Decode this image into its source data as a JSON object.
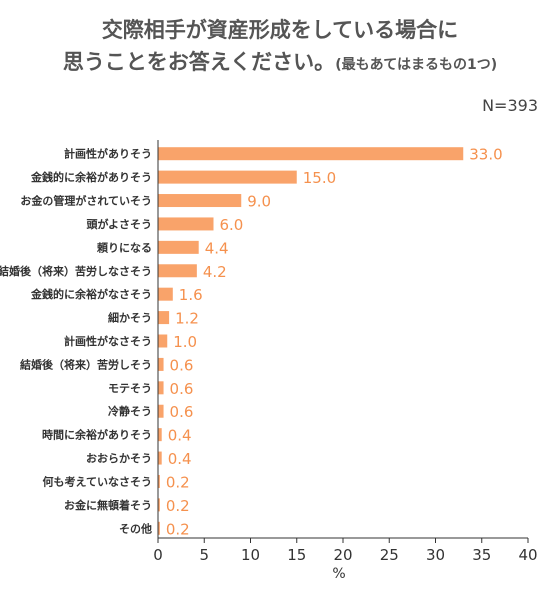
{
  "header": {
    "title_line1": "交際相手が資産形成をしている場合に",
    "title_line2": "思うことをお答えください。",
    "title_note": "(最もあてはまるもの1つ)",
    "sample_size": "N=393"
  },
  "colors": {
    "bar": "#F9A36A",
    "value_label": "#F5914E",
    "axis": "#333333"
  },
  "chart_data": {
    "type": "bar",
    "orientation": "horizontal",
    "title": "交際相手が資産形成をしている場合に思うことをお答えください。(最もあてはまるもの1つ)",
    "categories": [
      "計画性がありそう",
      "金銭的に余裕がありそう",
      "お金の管理がされていそう",
      "頭がよさそう",
      "頼りになる",
      "結婚後（将来）苦労しなさそう",
      "金銭的に余裕がなさそう",
      "細かそう",
      "計画性がなさそう",
      "結婚後（将来）苦労しそう",
      "モテそう",
      "冷静そう",
      "時間に余裕がありそう",
      "おおらかそう",
      "何も考えていなさそう",
      "お金に無頓着そう",
      "その他"
    ],
    "values": [
      33.0,
      15.0,
      9.0,
      6.0,
      4.4,
      4.2,
      1.6,
      1.2,
      1.0,
      0.6,
      0.6,
      0.6,
      0.4,
      0.4,
      0.2,
      0.2,
      0.2
    ],
    "value_labels": [
      "33.0",
      "15.0",
      "9.0",
      "6.0",
      "4.4",
      "4.2",
      "1.6",
      "1.2",
      "1.0",
      "0.6",
      "0.6",
      "0.6",
      "0.4",
      "0.4",
      "0.2",
      "0.2",
      "0.2"
    ],
    "xlabel": "%",
    "xlim": [
      0,
      40
    ],
    "xticks": [
      0,
      5,
      10,
      15,
      20,
      25,
      30,
      35,
      40
    ],
    "grid": false
  }
}
